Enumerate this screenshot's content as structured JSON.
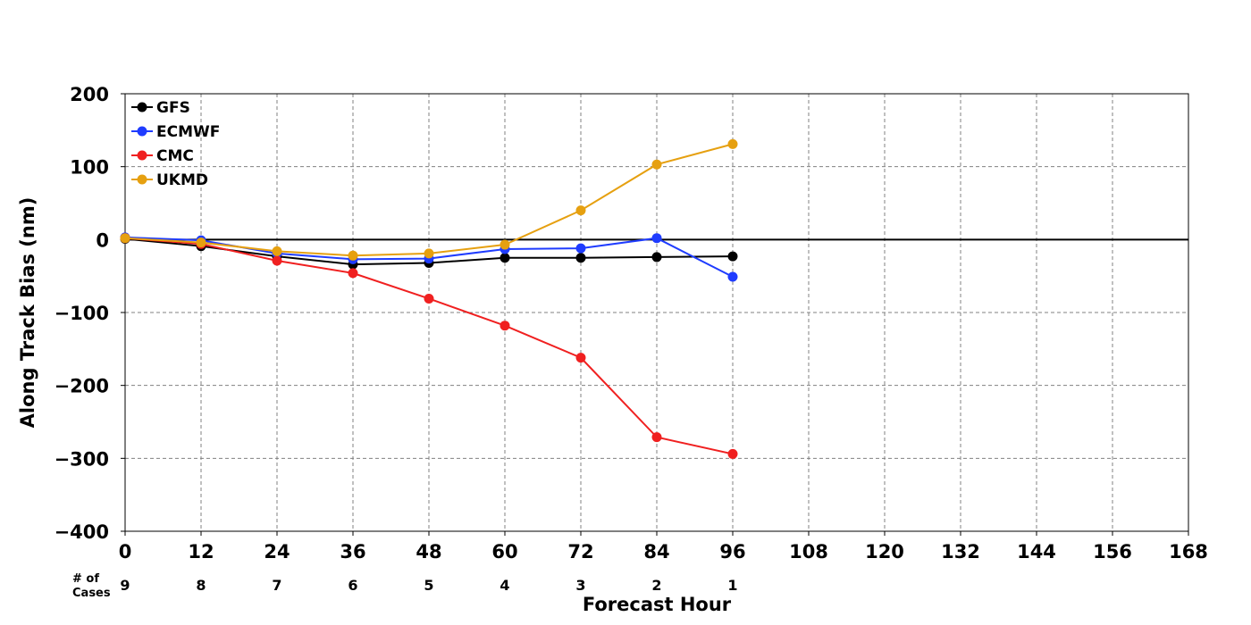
{
  "chart_data": {
    "type": "line",
    "title": "",
    "xlabel": "Forecast Hour",
    "ylabel": "Along Track Bias (nm)",
    "xlim": [
      0,
      168
    ],
    "ylim": [
      -400,
      200
    ],
    "xticks": [
      0,
      12,
      24,
      36,
      48,
      60,
      72,
      84,
      96,
      108,
      120,
      132,
      144,
      156,
      168
    ],
    "yticks": [
      200,
      100,
      0,
      -100,
      -200,
      -300,
      -400
    ],
    "ytick_labels": [
      "200",
      "100",
      "0",
      "−100",
      "−200",
      "−300",
      "−400"
    ],
    "grid": true,
    "legend_position": "top-left",
    "zero_line": true,
    "cases_label_line1": "# of",
    "cases_label_line2": "Cases",
    "cases": [
      {
        "x": 0,
        "n": "9"
      },
      {
        "x": 12,
        "n": "8"
      },
      {
        "x": 24,
        "n": "7"
      },
      {
        "x": 36,
        "n": "6"
      },
      {
        "x": 48,
        "n": "5"
      },
      {
        "x": 60,
        "n": "4"
      },
      {
        "x": 72,
        "n": "3"
      },
      {
        "x": 84,
        "n": "2"
      },
      {
        "x": 96,
        "n": "1"
      }
    ],
    "x": [
      0,
      12,
      24,
      36,
      48,
      60,
      72,
      84,
      96
    ],
    "series": [
      {
        "name": "GFS",
        "color": "#000000",
        "values": [
          1,
          -9,
          -23,
          -34,
          -32,
          -25,
          -25,
          -24,
          -23
        ]
      },
      {
        "name": "ECMWF",
        "color": "#1f3cff",
        "values": [
          3,
          -1,
          -19,
          -27,
          -26,
          -13,
          -12,
          2,
          -51
        ]
      },
      {
        "name": "CMC",
        "color": "#f02020",
        "values": [
          2,
          -6,
          -29,
          -46,
          -81,
          -118,
          -162,
          -271,
          -294
        ]
      },
      {
        "name": "UKMD",
        "color": "#e6a010",
        "values": [
          2,
          -4,
          -16,
          -22,
          -19,
          -7,
          40,
          103,
          131
        ]
      }
    ]
  }
}
